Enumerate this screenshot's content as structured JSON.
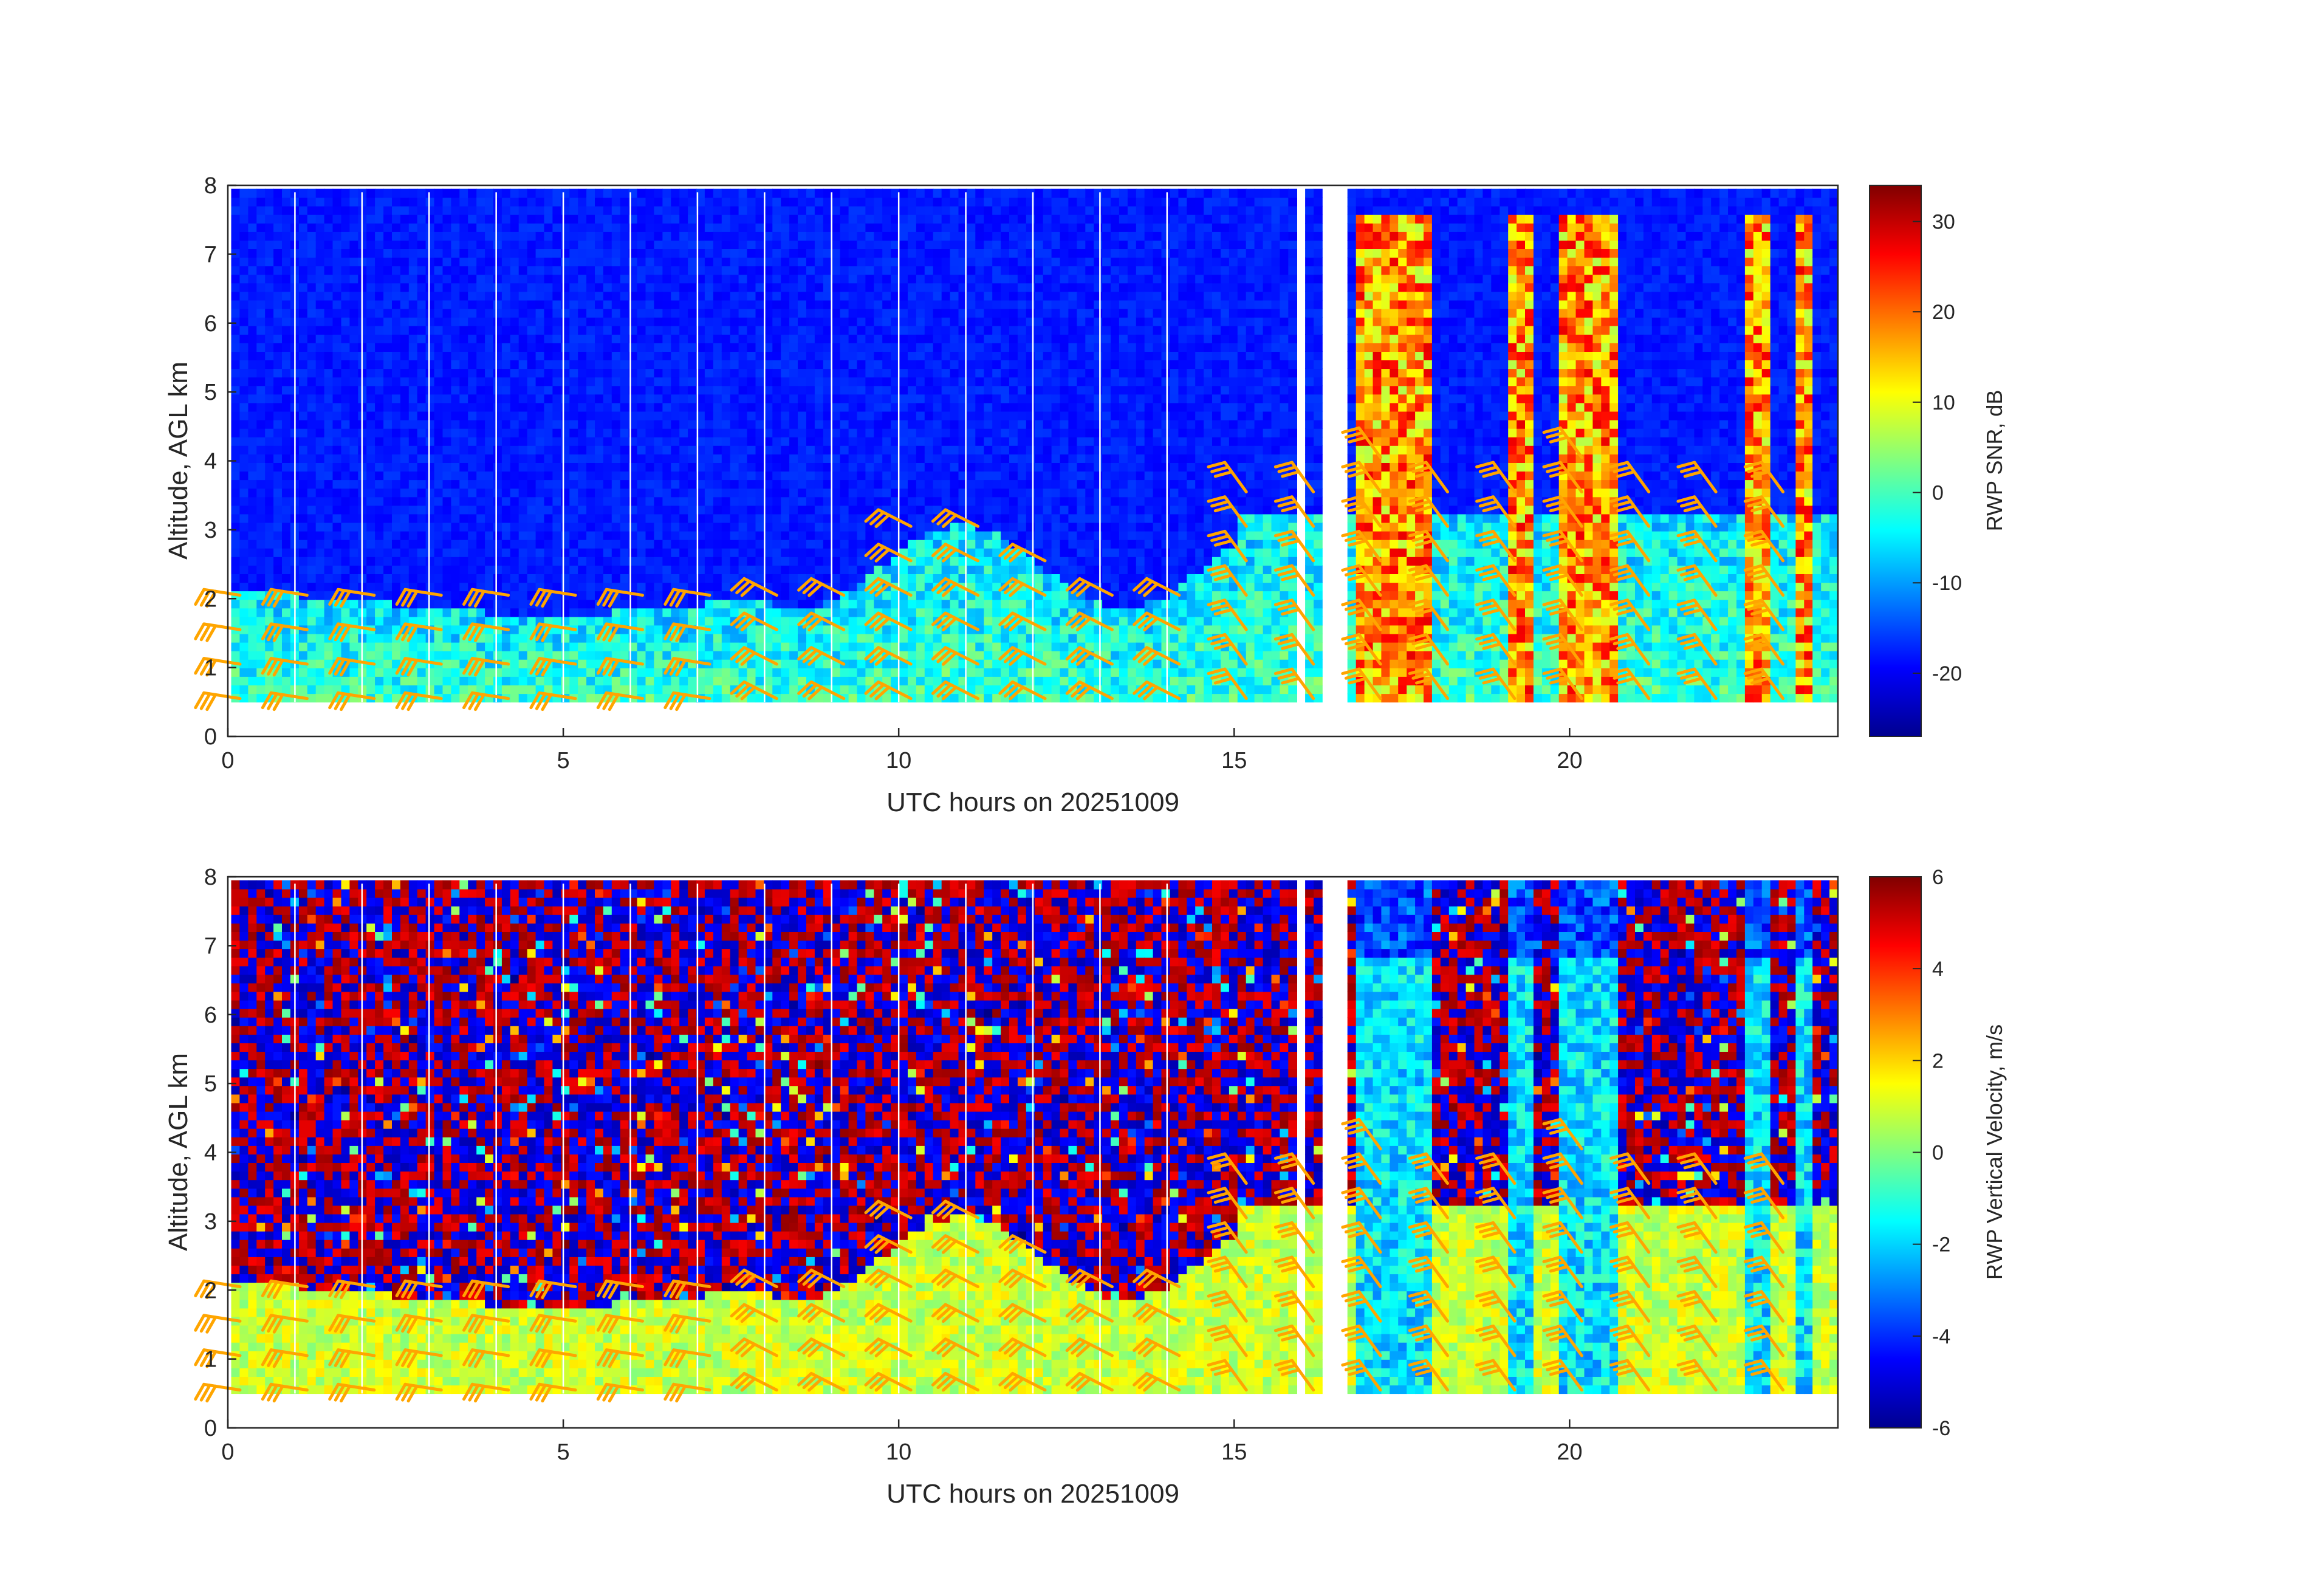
{
  "chart_data": [
    {
      "type": "heatmap",
      "xlabel": "UTC hours on 20251009",
      "ylabel": "Altitude, AGL km",
      "xlim": [
        0,
        24
      ],
      "ylim": [
        0,
        8
      ],
      "xticks": [
        "0",
        "5",
        "10",
        "15",
        "20"
      ],
      "yticks": [
        "0",
        "1",
        "2",
        "3",
        "4",
        "5",
        "6",
        "7",
        "8"
      ],
      "colorbar": {
        "label": "RWP SNR, dB",
        "range": [
          -27,
          34
        ],
        "ticks": [
          "-20",
          "-10",
          "0",
          "10",
          "20",
          "30"
        ],
        "tick_values": [
          -20,
          -10,
          0,
          10,
          20,
          30
        ]
      },
      "overlay": "wind barbs",
      "colors": {
        "barb": "#ffa500",
        "background_field": "#0a2fd4"
      }
    },
    {
      "type": "heatmap",
      "xlabel": "UTC hours on 20251009",
      "ylabel": "Altitude, AGL km",
      "xlim": [
        0,
        24
      ],
      "ylim": [
        0,
        8
      ],
      "xticks": [
        "0",
        "5",
        "10",
        "15",
        "20"
      ],
      "yticks": [
        "0",
        "1",
        "2",
        "3",
        "4",
        "5",
        "6",
        "7",
        "8"
      ],
      "colorbar": {
        "label": "RWP Vertical Velocity, m/s",
        "range": [
          -6,
          6
        ],
        "ticks": [
          "-6",
          "-4",
          "-2",
          "0",
          "2",
          "4",
          "6"
        ],
        "tick_values": [
          -6,
          -4,
          -2,
          0,
          2,
          4,
          6
        ]
      },
      "overlay": "wind barbs",
      "colors": {
        "barb": "#ffa500"
      }
    }
  ]
}
